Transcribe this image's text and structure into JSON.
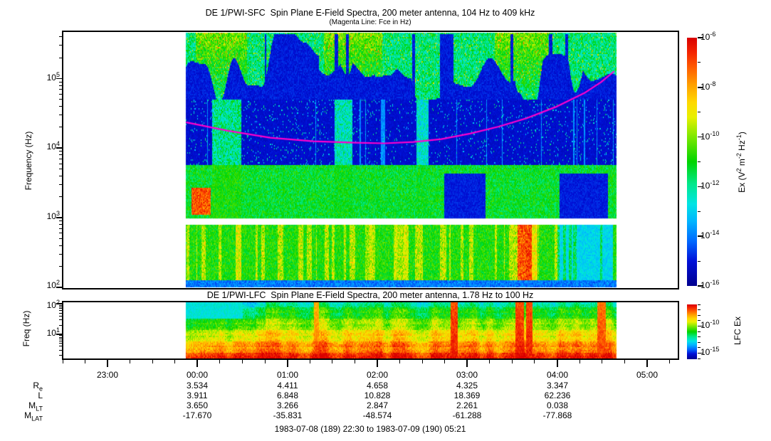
{
  "figure": {
    "background": "#ffffff",
    "footer": "1983-07-08 (189) 22:30 to 1983-07-09 (190) 05:21"
  },
  "chart_data": [
    {
      "type": "heatmap",
      "instrument": "SFC",
      "title": "DE 1/PWI-SFC  Spin Plane E-Field Spectra, 200 meter antenna, 104 Hz to 409 kHz",
      "subtitle": "(Magenta Line: Fce in Hz)",
      "ylabel": "Frequency (Hz)",
      "y_scale": "log",
      "y_ticks_hz": [
        100,
        1000,
        10000,
        100000
      ],
      "y_frame_range_log10hz": [
        1.98,
        5.68
      ],
      "x_axis_range_hours": [
        22.5,
        29.35
      ],
      "x_hour_tick_labels": [
        "23:00",
        "00:00",
        "01:00",
        "02:00",
        "03:00",
        "04:00",
        "05:00"
      ],
      "data_time_span_hours": [
        23.87,
        28.65
      ],
      "no_data_gap_log10hz": [
        2.9,
        2.99
      ],
      "colorbar": {
        "label": "Ex (V^2 m^-2 Hz^-1)",
        "tick_exponents": [
          -6,
          -8,
          -10,
          -12,
          -14,
          -16
        ],
        "range": [
          "1e-16",
          "1e-6"
        ],
        "colormap": "rainbow",
        "colormap_stops": [
          [
            0.0,
            "#00008f"
          ],
          [
            0.1,
            "#0010d8"
          ],
          [
            0.18,
            "#0068ff"
          ],
          [
            0.26,
            "#00b4ff"
          ],
          [
            0.33,
            "#00e4e4"
          ],
          [
            0.41,
            "#00e88c"
          ],
          [
            0.5,
            "#00d400"
          ],
          [
            0.6,
            "#7ce800"
          ],
          [
            0.68,
            "#e8f000"
          ],
          [
            0.74,
            "#ffd800"
          ],
          [
            0.81,
            "#ffa000"
          ],
          [
            0.88,
            "#ff5c00"
          ],
          [
            0.94,
            "#f42400"
          ],
          [
            1.0,
            "#d80000"
          ]
        ]
      },
      "fce_line": {
        "color": "#ff00cc",
        "points_hours_log10hz": [
          [
            23.88,
            4.37
          ],
          [
            24.34,
            4.25
          ],
          [
            24.81,
            4.15
          ],
          [
            25.29,
            4.1
          ],
          [
            25.76,
            4.08
          ],
          [
            26.08,
            4.07
          ],
          [
            26.4,
            4.09
          ],
          [
            26.71,
            4.13
          ],
          [
            27.03,
            4.21
          ],
          [
            27.35,
            4.31
          ],
          [
            27.66,
            4.43
          ],
          [
            27.98,
            4.59
          ],
          [
            28.3,
            4.79
          ],
          [
            28.49,
            4.95
          ],
          [
            28.63,
            5.1
          ]
        ]
      },
      "texture": {
        "bands": [
          {
            "name": "upper_vlf",
            "log10hz": [
              4.7,
              5.66
            ],
            "style": "green-cyan patches on dark blue",
            "base_v": 0.09,
            "blob_v": 0.35
          },
          {
            "name": "mid",
            "log10hz": [
              3.76,
              4.7
            ],
            "style": "dark blue with sparse cyan speckles",
            "base_v": 0.07
          },
          {
            "name": "lower_mid",
            "log10hz": [
              2.99,
              3.76
            ],
            "style": "green with dark-blue patches",
            "base_v": 0.42
          },
          {
            "name": "low",
            "log10hz": [
              2.02,
              2.9
            ],
            "style": "green with yellow-red vertical streaks",
            "base_v": 0.45
          }
        ],
        "bright_top_hours": [
          [
            23.98,
            24.55
          ],
          [
            25.4,
            26.05
          ],
          [
            27.3,
            27.9
          ]
        ],
        "green_streaks_hours": [
          {
            "t": 24.32,
            "w": 0.16,
            "v": 0.52
          },
          {
            "t": 25.62,
            "w": 0.1,
            "v": 0.47
          },
          {
            "t": 26.5,
            "w": 0.07,
            "v": 0.44
          }
        ],
        "dark_patches": [
          {
            "t": [
              26.74,
              27.2
            ],
            "v": 0.09
          },
          {
            "t": [
              28.02,
              28.56
            ],
            "v": 0.09
          }
        ],
        "cyan_patch_low": {
          "t": [
            28.0,
            28.62
          ],
          "v": 0.26
        },
        "hot_spot": {
          "t": [
            23.93,
            24.14
          ],
          "log10hz": [
            3.05,
            3.45
          ],
          "v": 0.8
        },
        "low_streaks": [
          {
            "t": 24.45,
            "w": 0.03,
            "v": 0.78
          },
          {
            "t": 25.9,
            "w": 0.04,
            "v": 0.7
          },
          {
            "t": 26.26,
            "w": 0.08,
            "v": 0.72
          },
          {
            "t": 27.6,
            "w": 0.045,
            "v": 0.97
          },
          {
            "t": 27.68,
            "w": 0.035,
            "v": 1.0
          },
          {
            "t": 27.74,
            "w": 0.04,
            "v": 0.8
          }
        ]
      }
    },
    {
      "type": "heatmap",
      "instrument": "LFC",
      "title": "DE 1/PWI-LFC  Spin Plane E-Field Spectra, 200 meter antenna, 1.78 Hz to 100 Hz",
      "ylabel": "Freq (Hz)",
      "y_scale": "log",
      "y_ticks_hz": [
        10,
        100
      ],
      "y_frame_range_log10hz": [
        0.2,
        2.08
      ],
      "x_axis_range_hours": [
        22.5,
        29.35
      ],
      "data_time_span_hours": [
        23.87,
        28.65
      ],
      "colorbar": {
        "label": "LFC Ex",
        "tick_exponents_labeled": [
          -10,
          -15
        ],
        "tick_exponent_range": [
          -6,
          -16
        ]
      },
      "texture": {
        "v_top": 0.4,
        "v_bottom": 0.95,
        "cyan_patch": {
          "t": [
            23.87,
            24.5
          ],
          "frac": 0.3,
          "v": 0.3
        },
        "green_left_until_hours": 24.75,
        "red_streaks": [
          {
            "t": 25.32,
            "w": 0.03,
            "v": 0.88
          },
          {
            "t": 26.85,
            "w": 0.04,
            "v": 1.0
          },
          {
            "t": 27.58,
            "w": 0.05,
            "v": 1.0
          },
          {
            "t": 27.69,
            "w": 0.035,
            "v": 1.0
          },
          {
            "t": 28.49,
            "w": 0.05,
            "v": 0.95
          }
        ]
      }
    }
  ],
  "ephemeris": {
    "row_labels": [
      {
        "base": "R",
        "sub": "e"
      },
      {
        "base": "L",
        "sub": ""
      },
      {
        "base": "M",
        "sub": "LT"
      },
      {
        "base": "M",
        "sub": "LAT"
      }
    ],
    "column_times": [
      "00:00",
      "01:00",
      "02:00",
      "03:00",
      "04:00"
    ],
    "rows": [
      {
        "key": "Re",
        "values": [
          "3.534",
          "4.411",
          "4.658",
          "4.325",
          "3.347"
        ]
      },
      {
        "key": "L",
        "values": [
          "3.911",
          "6.848",
          "10.828",
          "18.369",
          "62.236"
        ]
      },
      {
        "key": "MLT",
        "values": [
          "3.650",
          "3.266",
          "2.847",
          "2.261",
          "0.038"
        ]
      },
      {
        "key": "MLAT",
        "values": [
          "-17.670",
          "-35.831",
          "-48.574",
          "-61.288",
          "-77.868"
        ]
      }
    ]
  },
  "ui": {
    "hours": [
      "23:00",
      "00:00",
      "01:00",
      "02:00",
      "03:00",
      "04:00",
      "05:00"
    ],
    "sfc_yticks": [
      {
        "b": "10",
        "e": "5"
      },
      {
        "b": "10",
        "e": "4"
      },
      {
        "b": "10",
        "e": "3"
      },
      {
        "b": "10",
        "e": "2"
      }
    ],
    "lfc_yticks": [
      {
        "b": "10",
        "e": "2"
      },
      {
        "b": "10",
        "e": "1"
      }
    ],
    "sfc_cb_ticklabels": [
      {
        "b": "10",
        "e": "-6"
      },
      {
        "b": "10",
        "e": "-8"
      },
      {
        "b": "10",
        "e": "-10"
      },
      {
        "b": "10",
        "e": "-12"
      },
      {
        "b": "10",
        "e": "-14"
      },
      {
        "b": "10",
        "e": "-16"
      }
    ],
    "lfc_cb_ticklabels": [
      {
        "b": "10",
        "e": "-10"
      },
      {
        "b": "10",
        "e": "-15"
      }
    ],
    "ex_label_segments": [
      "Ex (V",
      "2",
      " m",
      "-2",
      " Hz",
      "-1",
      ")"
    ],
    "lfc_cb_label": "LFC Ex"
  }
}
